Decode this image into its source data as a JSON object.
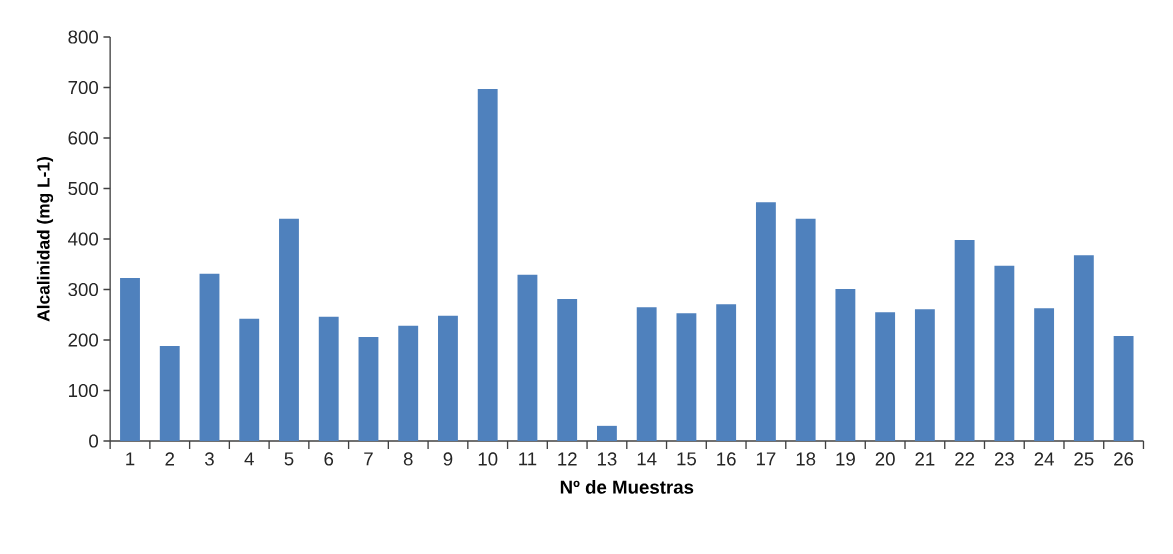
{
  "chart_data": {
    "type": "bar",
    "xlabel": "Nº de Muestras",
    "ylabel": "Alcalinidad (mg L-1)",
    "categories": [
      "1",
      "2",
      "3",
      "4",
      "5",
      "6",
      "7",
      "8",
      "9",
      "10",
      "11",
      "12",
      "13",
      "14",
      "15",
      "16",
      "17",
      "18",
      "19",
      "20",
      "21",
      "22",
      "23",
      "24",
      "25",
      "26"
    ],
    "values": [
      323,
      188,
      331,
      242,
      440,
      246,
      206,
      228,
      248,
      697,
      329,
      281,
      30,
      265,
      253,
      271,
      473,
      440,
      301,
      255,
      261,
      398,
      347,
      263,
      368,
      208
    ],
    "color": "#4f81bd",
    "ylim": [
      0,
      800
    ],
    "yticks": [
      0,
      100,
      200,
      300,
      400,
      500,
      600,
      700,
      800
    ],
    "grid": false
  }
}
